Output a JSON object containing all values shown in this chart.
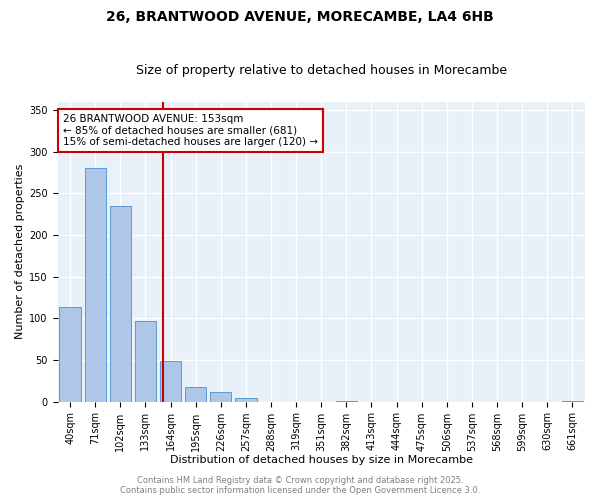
{
  "title1": "26, BRANTWOOD AVENUE, MORECAMBE, LA4 6HB",
  "title2": "Size of property relative to detached houses in Morecambe",
  "xlabel": "Distribution of detached houses by size in Morecambe",
  "ylabel": "Number of detached properties",
  "bin_labels": [
    "40sqm",
    "71sqm",
    "102sqm",
    "133sqm",
    "164sqm",
    "195sqm",
    "226sqm",
    "257sqm",
    "288sqm",
    "319sqm",
    "351sqm",
    "382sqm",
    "413sqm",
    "444sqm",
    "475sqm",
    "506sqm",
    "537sqm",
    "568sqm",
    "599sqm",
    "630sqm",
    "661sqm"
  ],
  "counts": [
    113,
    280,
    235,
    97,
    49,
    18,
    12,
    4,
    0,
    0,
    0,
    1,
    0,
    0,
    0,
    0,
    0,
    0,
    0,
    0,
    1
  ],
  "bar_color": "#aec6e8",
  "bar_edge_color": "#5b9bd5",
  "vline_bin_index": 3.7,
  "vline_color": "#cc0000",
  "annotation_line1": "26 BRANTWOOD AVENUE: 153sqm",
  "annotation_line2": "← 85% of detached houses are smaller (681)",
  "annotation_line3": "15% of semi-detached houses are larger (120) →",
  "annotation_box_color": "white",
  "annotation_box_edge": "#cc0000",
  "ylim": [
    0,
    360
  ],
  "yticks": [
    0,
    50,
    100,
    150,
    200,
    250,
    300,
    350
  ],
  "background_color": "#e8f0f8",
  "grid_color": "white",
  "footer1": "Contains HM Land Registry data © Crown copyright and database right 2025.",
  "footer2": "Contains public sector information licensed under the Open Government Licence 3.0.",
  "title1_fontsize": 10,
  "title2_fontsize": 9,
  "annotation_fontsize": 7.5,
  "axis_fontsize": 8,
  "tick_fontsize": 7,
  "footer_fontsize": 6
}
